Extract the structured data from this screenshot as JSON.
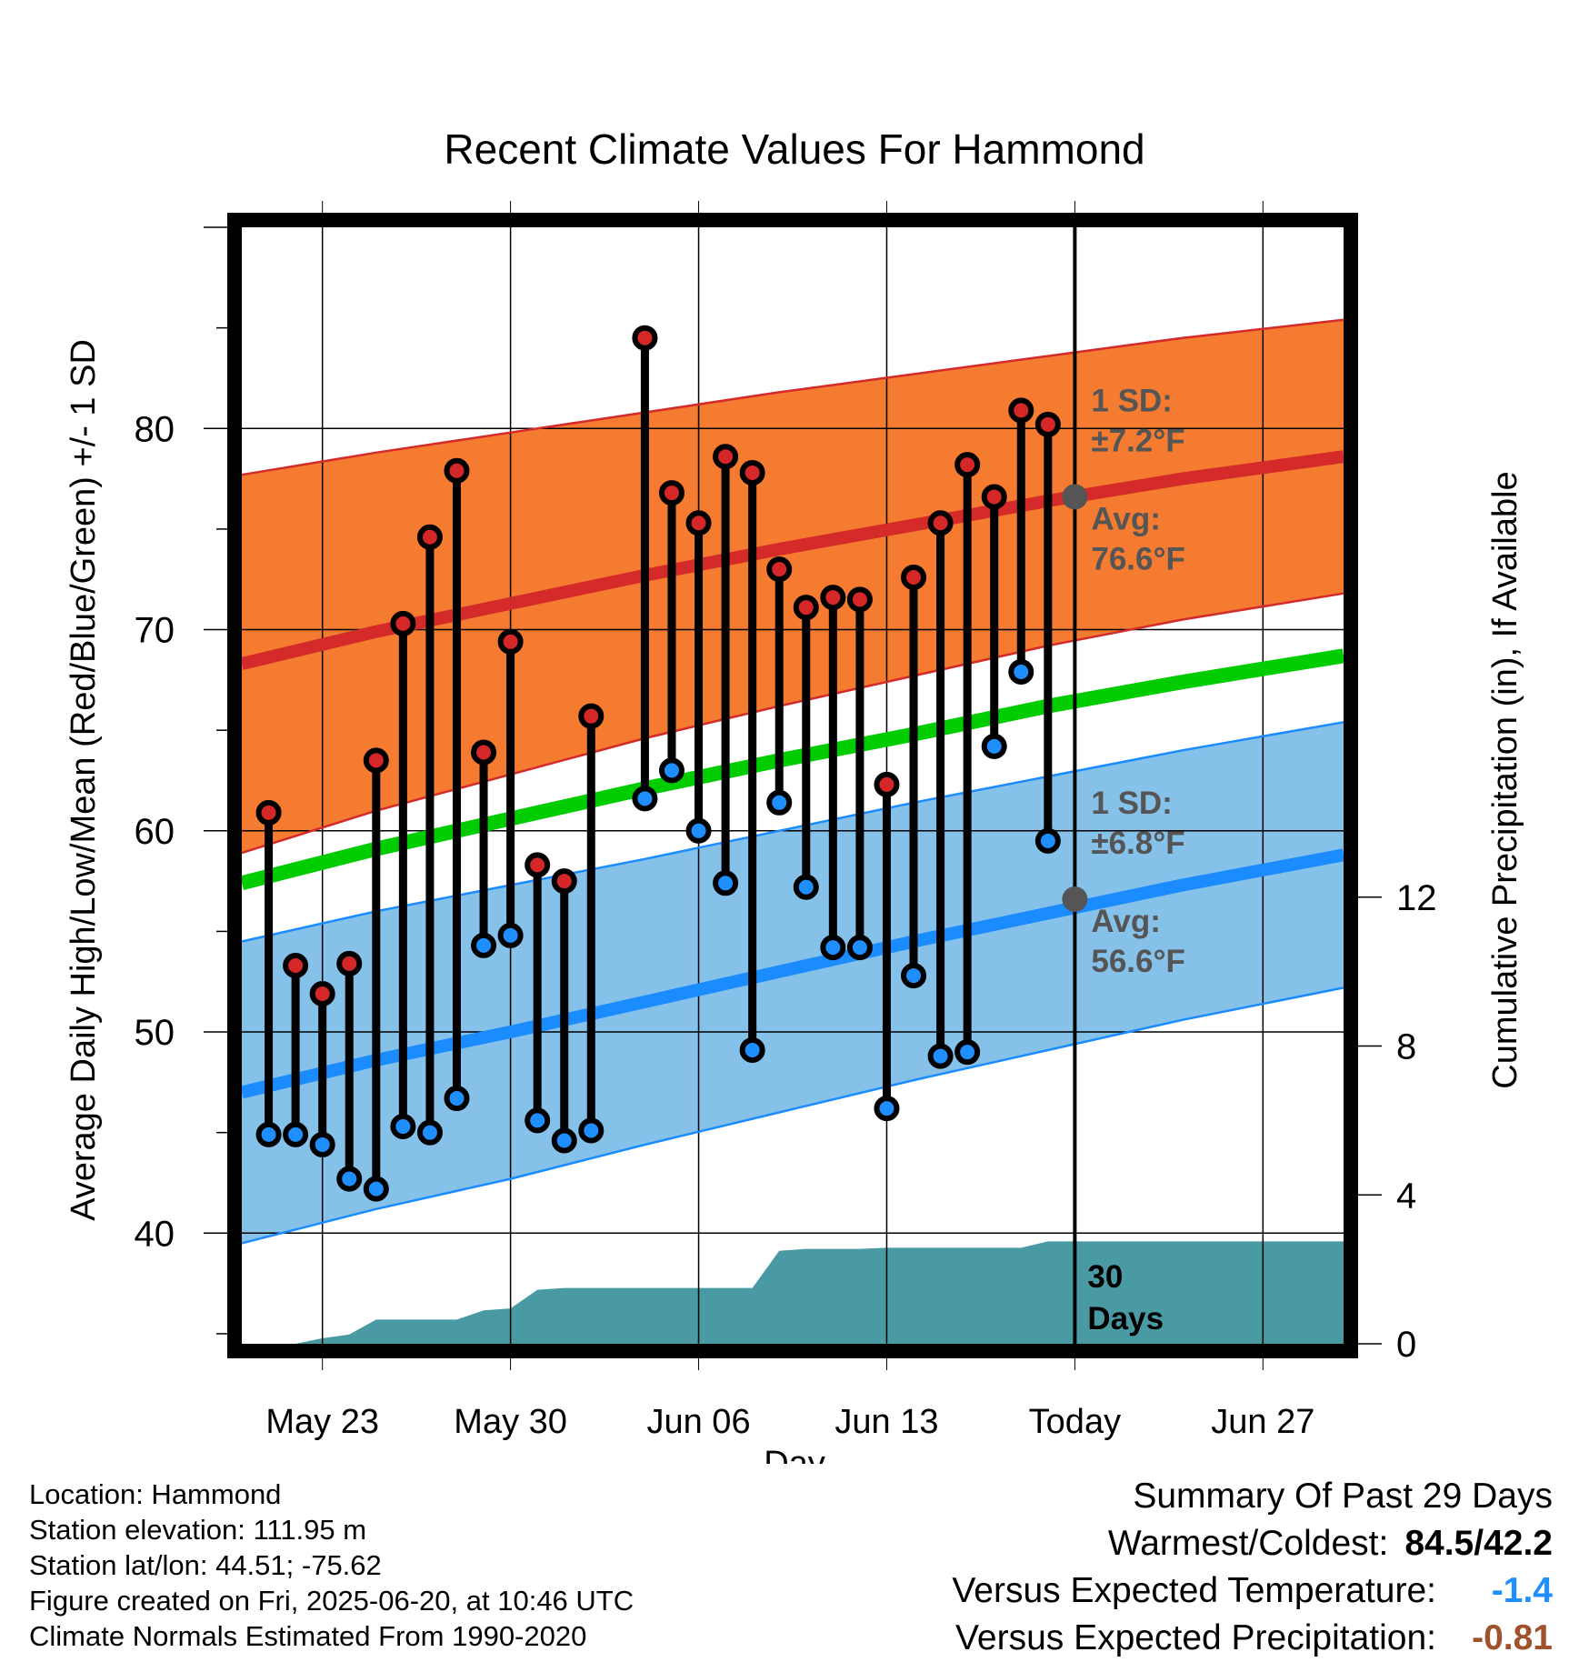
{
  "chart_data": {
    "type": "line",
    "title": "Recent Climate Values For Hammond",
    "xlabel": "Day",
    "ylabel": "Average Daily High/Low/Mean (Red/Blue/Green) +/- 1 SD",
    "y2label": "Cumulative Precipitation (in), If Available",
    "x_range": [
      "2025-05-20",
      "2025-06-30"
    ],
    "ylim": [
      34.5,
      90
    ],
    "y2lim": [
      0,
      30
    ],
    "x_ticks": [
      "2025-05-23",
      "2025-05-30",
      "2025-06-06",
      "2025-06-13",
      "2025-06-20",
      "2025-06-27"
    ],
    "x_tick_labels": [
      "May 23",
      "May 30",
      "Jun 06",
      "Jun 13",
      "Today",
      "Jun 27"
    ],
    "y_ticks": [
      40,
      50,
      60,
      70,
      80
    ],
    "y2_ticks": [
      0,
      4,
      8,
      12
    ],
    "grid": true,
    "today": "2025-06-20",
    "today_label": "30\nDays",
    "colors": {
      "high": "#d62728",
      "low": "#1f8fff",
      "mean": "#00cc00",
      "high_band": "#f47b30",
      "low_band": "#85c1e9",
      "high_norm": "#d42a2a",
      "low_norm": "#1a8cff",
      "precip": "#4a9aa3",
      "stem": "#000000",
      "annot": "#555555",
      "dep_temp": "#1f8fff",
      "dep_precip": "#a0522d"
    },
    "normals": {
      "dates": [
        "2025-05-20",
        "2025-05-25",
        "2025-05-30",
        "2025-06-04",
        "2025-06-09",
        "2025-06-14",
        "2025-06-19",
        "2025-06-24",
        "2025-06-30"
      ],
      "high_mean": [
        68.3,
        69.9,
        71.3,
        72.7,
        74.0,
        75.2,
        76.4,
        77.5,
        78.6
      ],
      "high_sd": [
        9.4,
        8.9,
        8.5,
        8.1,
        7.8,
        7.5,
        7.2,
        7.0,
        6.8
      ],
      "low_mean": [
        47.0,
        48.6,
        50.0,
        51.5,
        53.0,
        54.5,
        55.9,
        57.3,
        58.8
      ],
      "low_sd": [
        7.5,
        7.4,
        7.3,
        7.1,
        7.0,
        6.9,
        6.8,
        6.7,
        6.6
      ],
      "mean": [
        57.4,
        59.1,
        60.6,
        62.1,
        63.5,
        64.8,
        66.2,
        67.4,
        68.7
      ]
    },
    "series": [
      {
        "name": "High",
        "dates": [
          "2025-05-21",
          "2025-05-22",
          "2025-05-23",
          "2025-05-24",
          "2025-05-25",
          "2025-05-26",
          "2025-05-27",
          "2025-05-28",
          "2025-05-29",
          "2025-05-30",
          "2025-05-31",
          "2025-06-01",
          "2025-06-02",
          "2025-06-04",
          "2025-06-05",
          "2025-06-06",
          "2025-06-07",
          "2025-06-08",
          "2025-06-09",
          "2025-06-10",
          "2025-06-11",
          "2025-06-12",
          "2025-06-13",
          "2025-06-14",
          "2025-06-15",
          "2025-06-16",
          "2025-06-17",
          "2025-06-18",
          "2025-06-19"
        ],
        "values": [
          60.9,
          53.3,
          51.9,
          53.4,
          63.5,
          70.3,
          74.6,
          77.9,
          63.9,
          69.4,
          58.3,
          57.5,
          65.7,
          84.5,
          76.8,
          75.3,
          78.6,
          77.8,
          73.0,
          71.1,
          71.6,
          71.5,
          62.3,
          72.6,
          75.3,
          78.2,
          76.6,
          80.9,
          80.2
        ]
      },
      {
        "name": "Low",
        "dates": [
          "2025-05-21",
          "2025-05-22",
          "2025-05-23",
          "2025-05-24",
          "2025-05-25",
          "2025-05-26",
          "2025-05-27",
          "2025-05-28",
          "2025-05-29",
          "2025-05-30",
          "2025-05-31",
          "2025-06-01",
          "2025-06-02",
          "2025-06-04",
          "2025-06-05",
          "2025-06-06",
          "2025-06-07",
          "2025-06-08",
          "2025-06-09",
          "2025-06-10",
          "2025-06-11",
          "2025-06-12",
          "2025-06-13",
          "2025-06-14",
          "2025-06-15",
          "2025-06-16",
          "2025-06-17",
          "2025-06-18",
          "2025-06-19"
        ],
        "values": [
          44.9,
          44.9,
          44.4,
          42.7,
          42.2,
          45.3,
          45.0,
          46.7,
          54.3,
          54.8,
          45.6,
          44.6,
          45.1,
          61.6,
          63.0,
          60.0,
          57.4,
          49.1,
          61.4,
          57.2,
          54.2,
          54.2,
          46.2,
          52.8,
          48.8,
          49.0,
          64.2,
          67.9,
          59.5
        ]
      }
    ],
    "precip_cumulative": {
      "dates": [
        "2025-05-20",
        "2025-05-22",
        "2025-05-23",
        "2025-05-24",
        "2025-05-25",
        "2025-05-26",
        "2025-05-28",
        "2025-05-29",
        "2025-05-30",
        "2025-05-31",
        "2025-06-01",
        "2025-06-08",
        "2025-06-09",
        "2025-06-10",
        "2025-06-12",
        "2025-06-13",
        "2025-06-16",
        "2025-06-17",
        "2025-06-18",
        "2025-06-19",
        "2025-06-20",
        "2025-06-30"
      ],
      "values": [
        0,
        0,
        0.15,
        0.25,
        0.65,
        0.65,
        0.65,
        0.9,
        0.95,
        1.45,
        1.5,
        1.5,
        2.5,
        2.55,
        2.55,
        2.58,
        2.58,
        2.58,
        2.58,
        2.75,
        2.75,
        2.75
      ]
    },
    "annotations": [
      {
        "sd_label": "1 SD:",
        "sd_value": "±7.2°F",
        "avg_label": "Avg:",
        "avg_value": "76.6°F",
        "avg": 76.6
      },
      {
        "sd_label": "1 SD:",
        "sd_value": "±6.8°F",
        "avg_label": "Avg:",
        "avg_value": "56.6°F",
        "avg": 56.6
      }
    ]
  },
  "footer": {
    "location": "Location: Hammond",
    "elevation": "Station elevation: 111.95 m",
    "latlon": "Station lat/lon: 44.51; -75.62",
    "created": "Figure created on Fri, 2025-06-20, at 10:46 UTC",
    "normals": "Climate Normals Estimated From 1990-2020"
  },
  "summary": {
    "heading": "Summary Of Past 29 Days",
    "warm_cold_label": "Warmest/Coldest:",
    "warm_cold_value": "84.5/42.2",
    "temp_label": "Versus Expected Temperature:",
    "temp_value": "-1.4",
    "precip_label": "Versus Expected Precipitation:",
    "precip_value": "-0.81"
  }
}
